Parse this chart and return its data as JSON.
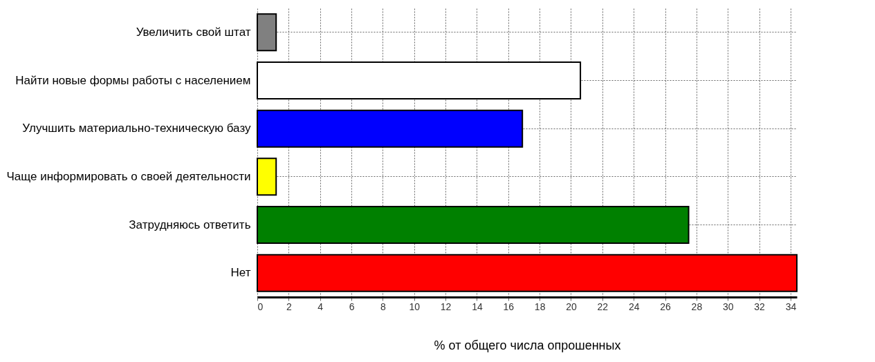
{
  "chart_data": {
    "type": "bar",
    "orientation": "horizontal",
    "xlabel": "% от общего числа опрошенных",
    "categories": [
      "Увеличить свой штат",
      "Найти новые формы работы с населением",
      "Улучшить материально-техническую базу",
      "Чаще информировать о своей деятельности",
      "Затрудняюсь ответить",
      "Нет"
    ],
    "values": [
      1.2,
      20.6,
      16.9,
      1.2,
      27.5,
      34.4
    ],
    "colors": [
      "#808080",
      "#ffffff",
      "#0000ff",
      "#ffff00",
      "#008000",
      "#ff0000"
    ],
    "xlim": [
      0,
      34.4
    ],
    "xticks": [
      0,
      2,
      4,
      6,
      8,
      10,
      12,
      14,
      16,
      18,
      20,
      22,
      24,
      26,
      28,
      30,
      32,
      34
    ],
    "grid": true
  }
}
